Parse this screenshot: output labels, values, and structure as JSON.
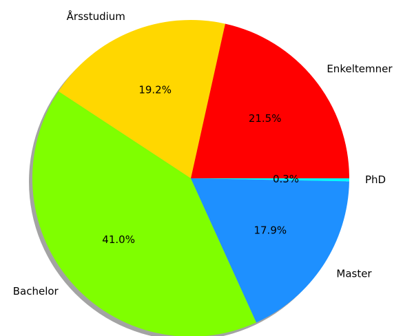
{
  "chart_data": {
    "type": "pie",
    "categories": [
      "Enkeltemner",
      "Årsstudium",
      "Bachelor",
      "Master",
      "PhD"
    ],
    "values": [
      21.5,
      19.2,
      41.0,
      17.9,
      0.3
    ],
    "value_labels": [
      "21.5%",
      "19.2%",
      "41.0%",
      "17.9%",
      "0.3%"
    ],
    "colors": [
      "#ff0000",
      "#ffd700",
      "#7fff00",
      "#1e90ff",
      "#00ffff"
    ],
    "shadow": true,
    "start_angle": 0
  }
}
